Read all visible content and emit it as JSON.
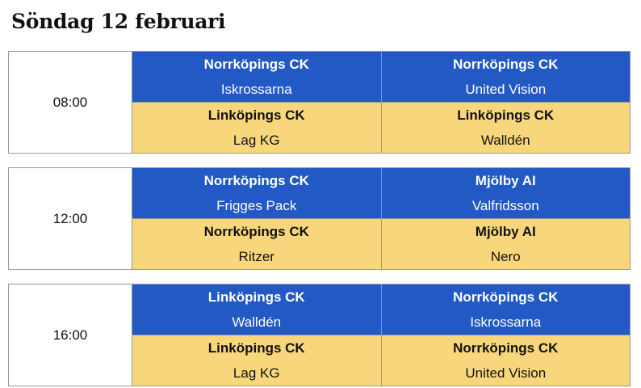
{
  "title": "Söndag 12 februari",
  "colors": {
    "home": "#2359c4",
    "away": "#f8d77c"
  },
  "slots": [
    {
      "time": "08:00",
      "matches": [
        {
          "home": {
            "club": "Norrköpings CK",
            "team": "Iskrossarna"
          },
          "away": {
            "club": "Linköpings CK",
            "team": "Lag KG"
          }
        },
        {
          "home": {
            "club": "Norrköpings CK",
            "team": "United Vision"
          },
          "away": {
            "club": "Linköpings CK",
            "team": "Walldén"
          }
        }
      ]
    },
    {
      "time": "12:00",
      "matches": [
        {
          "home": {
            "club": "Norrköpings CK",
            "team": "Frigges Pack"
          },
          "away": {
            "club": "Norrköpings CK",
            "team": "Ritzer"
          }
        },
        {
          "home": {
            "club": "Mjölby AI",
            "team": "Valfridsson"
          },
          "away": {
            "club": "Mjölby AI",
            "team": "Nero"
          }
        }
      ]
    },
    {
      "time": "16:00",
      "matches": [
        {
          "home": {
            "club": "Linköpings CK",
            "team": "Walldén"
          },
          "away": {
            "club": "Linköpings CK",
            "team": "Lag KG"
          }
        },
        {
          "home": {
            "club": "Norrköpings CK",
            "team": "Iskrossarna"
          },
          "away": {
            "club": "Norrköpings CK",
            "team": "United Vision"
          }
        }
      ]
    }
  ]
}
